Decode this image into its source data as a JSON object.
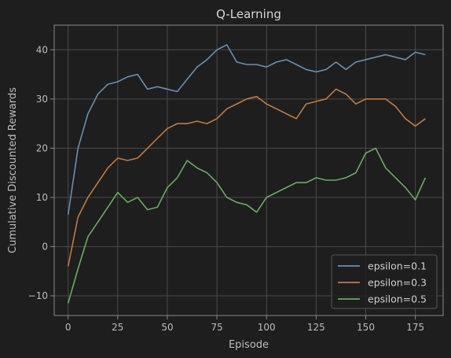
{
  "chart_data": {
    "type": "line",
    "title": "Q-Learning",
    "xlabel": "Episode",
    "ylabel": "Cumulative Discounted Rewards",
    "xlim": [
      -7,
      189
    ],
    "ylim": [
      -14,
      45
    ],
    "xticks": [
      0,
      25,
      50,
      75,
      100,
      125,
      150,
      175
    ],
    "yticks": [
      -10,
      0,
      10,
      20,
      30,
      40
    ],
    "grid": true,
    "legend_position": "bottom-right",
    "background": "#1e1e1e",
    "x": [
      0,
      5,
      10,
      15,
      20,
      25,
      30,
      35,
      40,
      45,
      50,
      55,
      60,
      65,
      70,
      75,
      80,
      85,
      90,
      95,
      100,
      105,
      110,
      115,
      120,
      125,
      130,
      135,
      140,
      145,
      150,
      155,
      160,
      165,
      170,
      175,
      180
    ],
    "series": [
      {
        "name": "epsilon=0.1",
        "color": "#6a8fb0",
        "values": [
          6.5,
          20,
          27,
          31,
          33,
          33.5,
          34.5,
          35,
          32,
          32.5,
          32,
          31.5,
          34,
          36.5,
          38,
          40,
          41,
          37.5,
          37,
          37,
          36.5,
          37.5,
          38,
          37,
          36,
          35.5,
          36,
          37.5,
          36,
          37.5,
          38,
          38.5,
          39,
          38.5,
          38,
          39.5,
          39
        ]
      },
      {
        "name": "epsilon=0.3",
        "color": "#c07a45",
        "values": [
          -4,
          6,
          10,
          13,
          16,
          18,
          17.5,
          18,
          20,
          22,
          24,
          25,
          25,
          25.5,
          25,
          26,
          28,
          29,
          30,
          30.5,
          29,
          28,
          27,
          26,
          29,
          29.5,
          30,
          32,
          31,
          29,
          30,
          30,
          30,
          28.5,
          26,
          24.5,
          26
        ]
      },
      {
        "name": "epsilon=0.5",
        "color": "#6aaa64",
        "values": [
          -11.5,
          -4.5,
          2,
          5,
          8,
          11,
          9,
          10,
          7.5,
          8,
          12,
          14,
          17.5,
          16,
          15,
          13,
          10,
          9,
          8.5,
          7,
          10,
          11,
          12,
          13,
          13,
          14,
          13.5,
          13.5,
          14,
          15,
          19,
          20,
          16,
          14,
          12,
          9.5,
          14
        ]
      }
    ]
  }
}
